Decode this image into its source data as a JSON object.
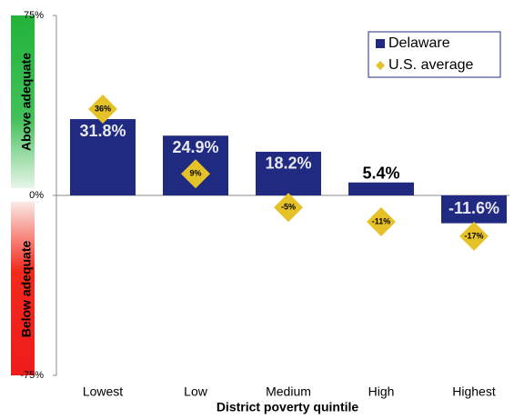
{
  "chart_data": {
    "type": "bar",
    "xlabel": "District poverty quintile",
    "categories": [
      "Lowest",
      "Low",
      "Medium",
      "High",
      "Highest"
    ],
    "series": [
      {
        "name": "Delaware",
        "color": "#1f2a80",
        "marker": "bar",
        "values": [
          31.8,
          24.9,
          18.2,
          5.4,
          -11.6
        ],
        "value_labels": [
          "31.8%",
          "24.9%",
          "18.2%",
          "5.4%",
          "-11.6%"
        ]
      },
      {
        "name": "U.S. average",
        "color": "#e6c229",
        "marker": "diamond",
        "values": [
          36,
          9,
          -5,
          -11,
          -17
        ],
        "value_labels": [
          "36%",
          "9%",
          "-5%",
          "-11%",
          "-17%"
        ]
      }
    ],
    "ylim": [
      -75,
      75
    ],
    "yticks": [
      {
        "value": -75,
        "label": "-75%"
      },
      {
        "value": 0,
        "label": "0%"
      },
      {
        "value": 75,
        "label": "75%"
      }
    ],
    "band_labels": [
      "Above adequate",
      "Below adequate"
    ],
    "legend": "upper right"
  }
}
